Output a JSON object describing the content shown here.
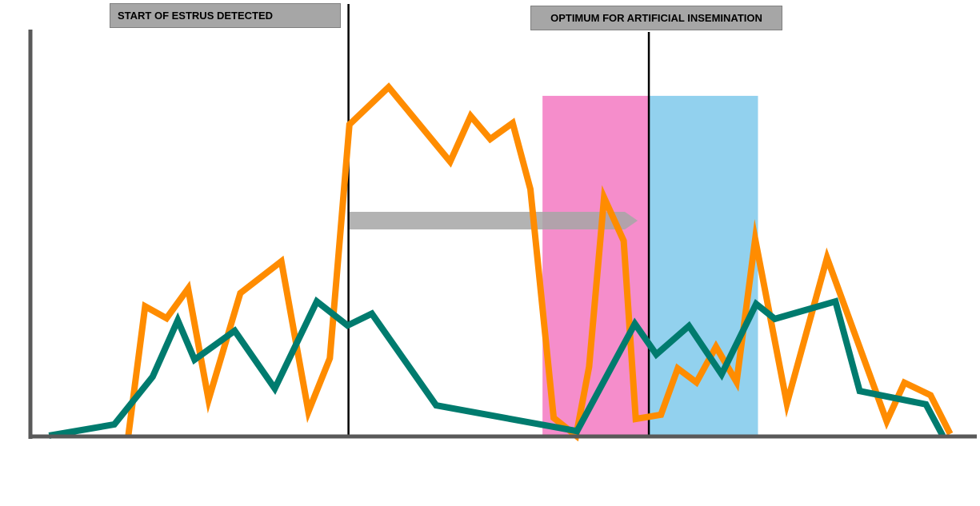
{
  "annotations": {
    "estrus_label": "START OF ESTRUS DETECTED",
    "optimum_label": "OPTIMUM FOR ARTIFICIAL INSEMINATION"
  },
  "colors": {
    "orange_series": "#ff8c00",
    "green_series": "#007b6e",
    "pink_window": "#f58dcb",
    "blue_window": "#92d1ee",
    "arrow": "#a6a6a6",
    "axis": "#595959",
    "marker_line": "#000000"
  },
  "chart_data": {
    "type": "line",
    "title": "",
    "xlabel": "",
    "ylabel": "",
    "xlim": [
      0,
      100
    ],
    "ylim": [
      0,
      100
    ],
    "grid": false,
    "legend": "none",
    "series": [
      {
        "color": "#ff8c00",
        "points": [
          [
            9.3,
            0
          ],
          [
            11.1,
            37.1
          ],
          [
            13.4,
            33.7
          ],
          [
            15.7,
            42.2
          ],
          [
            17.9,
            10.3
          ],
          [
            21.3,
            40.9
          ],
          [
            25.7,
            50.0
          ],
          [
            28.6,
            6.9
          ],
          [
            30.9,
            22.2
          ],
          [
            33.0,
            89.3
          ],
          [
            37.2,
            100.0
          ],
          [
            43.8,
            78.6
          ],
          [
            46.0,
            91.7
          ],
          [
            48.1,
            85.1
          ],
          [
            50.5,
            89.7
          ],
          [
            52.4,
            70.7
          ],
          [
            54.9,
            5.1
          ],
          [
            57.3,
            0
          ],
          [
            58.7,
            19.8
          ],
          [
            60.3,
            68.3
          ],
          [
            62.4,
            55.9
          ],
          [
            63.7,
            4.8
          ],
          [
            66.4,
            6.0
          ],
          [
            68.2,
            19.3
          ],
          [
            70.2,
            15.3
          ],
          [
            72.3,
            25.5
          ],
          [
            74.5,
            15.4
          ],
          [
            76.5,
            56.4
          ],
          [
            79.9,
            9.2
          ],
          [
            84.2,
            51.0
          ],
          [
            90.6,
            4.1
          ],
          [
            92.5,
            15.2
          ],
          [
            95.3,
            11.6
          ],
          [
            97.4,
            0.5
          ]
        ]
      },
      {
        "color": "#007b6e",
        "points": [
          [
            0.8,
            0
          ],
          [
            7.8,
            3.2
          ],
          [
            11.9,
            16.9
          ],
          [
            14.6,
            33.1
          ],
          [
            16.4,
            21.8
          ],
          [
            20.7,
            30.1
          ],
          [
            25.0,
            13.5
          ],
          [
            29.5,
            38.5
          ],
          [
            32.8,
            31.6
          ],
          [
            35.4,
            35.0
          ],
          [
            42.3,
            8.7
          ],
          [
            57.4,
            1.3
          ],
          [
            63.6,
            32.1
          ],
          [
            65.9,
            23.3
          ],
          [
            69.4,
            31.5
          ],
          [
            72.9,
            17.6
          ],
          [
            76.6,
            37.8
          ],
          [
            78.6,
            33.5
          ],
          [
            85.1,
            38.5
          ],
          [
            87.7,
            12.8
          ],
          [
            94.8,
            9.0
          ],
          [
            96.6,
            0
          ]
        ]
      }
    ],
    "markers": {
      "estrus_start_x": 32.9,
      "optimum_x": 65.1
    },
    "windows": [
      {
        "color": "#f58dcb",
        "x_from": 53.7,
        "x_to": 65.1,
        "y_top": 97.5
      },
      {
        "color": "#92d1ee",
        "x_from": 65.1,
        "x_to": 76.8,
        "y_top": 97.5
      }
    ],
    "arrow": {
      "x_from": 33.0,
      "x_to": 63.9,
      "y": 61.7
    }
  }
}
